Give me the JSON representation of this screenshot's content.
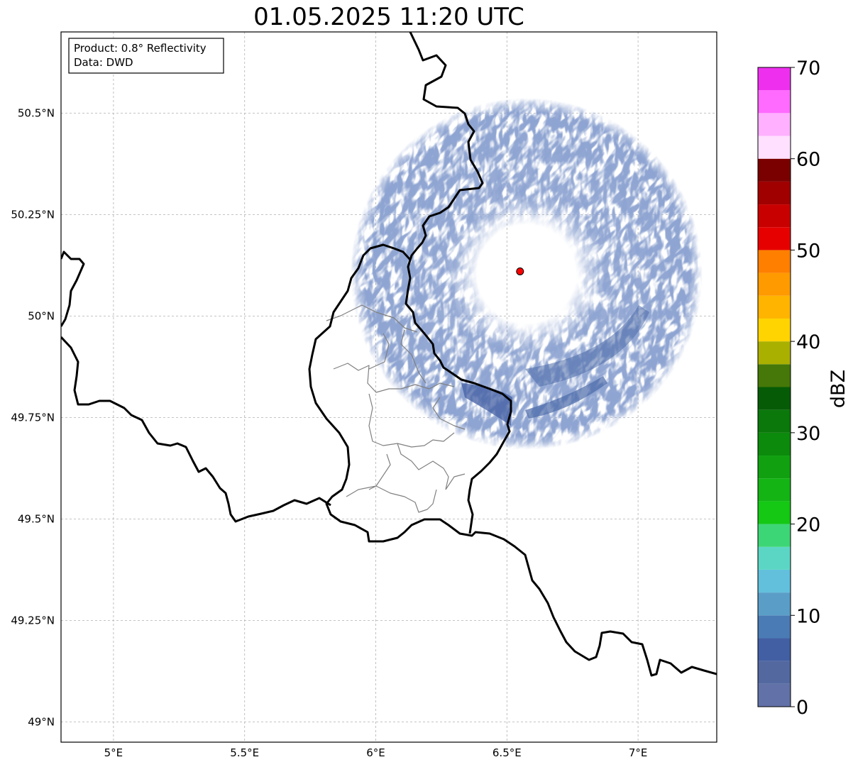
{
  "title": "01.05.2025 11:20 UTC",
  "info_box": {
    "line1": "Product: 0.8° Reflectivity",
    "line2": "Data: DWD"
  },
  "map": {
    "lon_range": [
      4.8,
      7.3
    ],
    "lat_range": [
      48.95,
      50.7
    ],
    "lon_ticks": [
      {
        "value": 5.0,
        "label": "5°E"
      },
      {
        "value": 5.5,
        "label": "5.5°E"
      },
      {
        "value": 6.0,
        "label": "6°E"
      },
      {
        "value": 6.5,
        "label": "6.5°E"
      },
      {
        "value": 7.0,
        "label": "7°E"
      }
    ],
    "lat_ticks": [
      {
        "value": 49.0,
        "label": "49°N"
      },
      {
        "value": 49.25,
        "label": "49.25°N"
      },
      {
        "value": 49.5,
        "label": "49.5°N"
      },
      {
        "value": 49.75,
        "label": "49.75°N"
      },
      {
        "value": 50.0,
        "label": "50°N"
      },
      {
        "value": 50.25,
        "label": "50.25°N"
      },
      {
        "value": 50.5,
        "label": "50.5°N"
      }
    ],
    "grid": true,
    "radar_site": {
      "lon": 6.55,
      "lat": 50.11,
      "color": "#ff0000"
    }
  },
  "colorbar": {
    "label": "dBZ",
    "min": 0,
    "max": 70,
    "step": 2.5,
    "tick_values": [
      0,
      10,
      20,
      30,
      40,
      50,
      60,
      70
    ],
    "tick_labels": [
      "0",
      "10",
      "20",
      "30",
      "40",
      "50",
      "60",
      "70"
    ],
    "colors": [
      "#6272a8",
      "#5468a0",
      "#435fa3",
      "#4a7bb4",
      "#5a9ec8",
      "#62c0dc",
      "#5cd6c4",
      "#3dd676",
      "#14c814",
      "#14b414",
      "#10a010",
      "#0c8a0c",
      "#0a780a",
      "#065c06",
      "#457808",
      "#aab000",
      "#ffd400",
      "#ffb400",
      "#ff9a00",
      "#ff7f00",
      "#e60000",
      "#c80000",
      "#a00000",
      "#7a0000",
      "#ffe0ff",
      "#ffb0ff",
      "#ff6aff",
      "#ee30ee"
    ]
  },
  "radar_echo": {
    "center_lon": 6.55,
    "center_lat": 50.11,
    "dominant_range_dbz": [
      0,
      7.5
    ],
    "dominant_color": "#435fa3"
  }
}
